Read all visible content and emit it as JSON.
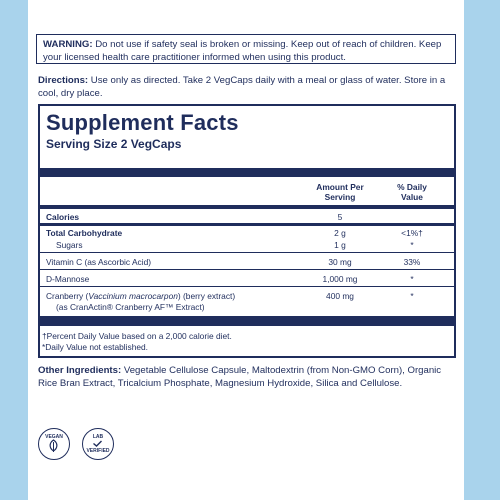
{
  "warning": {
    "label": "WARNING:",
    "text": "Do not use if safety seal is broken or missing. Keep out of reach of children. Keep your licensed health care practitioner informed when using this product."
  },
  "directions": {
    "label": "Directions:",
    "text": "Use only as directed. Take 2 VegCaps daily with a meal or glass of water. Store in a cool, dry place."
  },
  "supplement_facts": {
    "title": "Supplement Facts",
    "serving_size": "Serving Size 2 VegCaps",
    "col_amount": "Amount Per Serving",
    "col_dv": "% Daily Value",
    "rows": [
      {
        "name": "Calories",
        "amount": "5",
        "dv": ""
      },
      {
        "name": "Total Carbohydrate",
        "amount": "2 g",
        "dv": "<1%†"
      },
      {
        "name": "Sugars",
        "amount": "1 g",
        "dv": "*"
      },
      {
        "name": "Vitamin C (as Ascorbic Acid)",
        "amount": "30 mg",
        "dv": "33%"
      },
      {
        "name": "D-Mannose",
        "amount": "1,000 mg",
        "dv": "*"
      },
      {
        "name_prefix": "Cranberry (",
        "name_italic": "Vaccinium macrocarpon",
        "name_suffix": ") (berry extract)",
        "name_line2": "(as CranActin® Cranberry AF™ Extract)",
        "amount": "400 mg",
        "dv": "*"
      }
    ],
    "footnote1": "†Percent Daily Value based on a 2,000 calorie diet.",
    "footnote2": "*Daily Value not established."
  },
  "other_ingredients": {
    "label": "Other Ingredients:",
    "text": "Vegetable Cellulose Capsule, Maltodextrin (from Non-GMO Corn), Organic Rice Bran Extract, Tricalcium Phosphate, Magnesium Hydroxide, Silica and Cellulose."
  },
  "badges": {
    "vegan": "VEGAN",
    "lab_line1": "LAB",
    "lab_line2": "VERIFIED"
  },
  "colors": {
    "navy": "#1f2d5c",
    "background": "#a9d3ec"
  }
}
